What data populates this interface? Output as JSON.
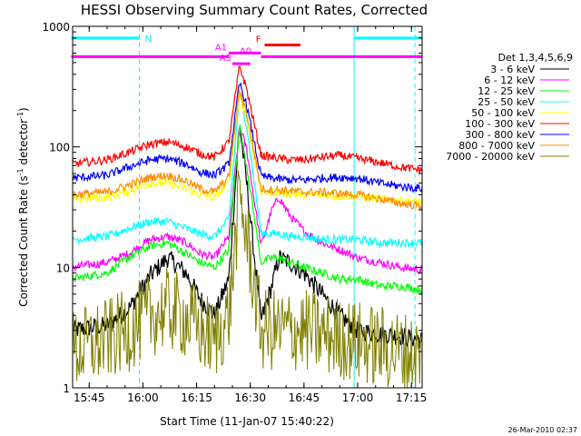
{
  "chart_data": {
    "type": "line",
    "title": "HESSI Observing Summary Count Rates, Corrected",
    "xlabel": "Start Time (11-Jan-07 15:40:22)",
    "ylabel": "Corrected Count Rate (s⁻¹ detector⁻¹)",
    "ylabel_parts": [
      "Corrected Count Rate (s",
      "-1",
      " detector",
      "-1",
      ")"
    ],
    "y_scale": "log",
    "ylim": [
      1,
      1000
    ],
    "xlim": [
      "15:40:22",
      "17:18:00"
    ],
    "x_ticks": [
      "15:45",
      "16:00",
      "16:15",
      "16:30",
      "16:45",
      "17:00",
      "17:15"
    ],
    "y_ticks": [
      "1",
      "10",
      "100",
      "1000"
    ],
    "legend_title": "Det 1,3,4,5,6,9",
    "legend_position": "right",
    "timestamp": "26-Mar-2010 02:37",
    "series": [
      {
        "name": "3 - 6 keV",
        "color": "#000000",
        "x": [
          "15:40",
          "15:50",
          "15:56",
          "16:02",
          "16:07",
          "16:12",
          "16:16",
          "16:20",
          "16:24",
          "16:27",
          "16:29",
          "16:33",
          "16:36",
          "16:38",
          "16:41",
          "16:45",
          "16:50",
          "16:55",
          "17:00",
          "17:06",
          "17:12",
          "17:18"
        ],
        "values": [
          3,
          3.3,
          4.5,
          8.5,
          12,
          9,
          5.5,
          4,
          8,
          150,
          50,
          3.6,
          7,
          12,
          11,
          9,
          6,
          4,
          3,
          2.8,
          2.7,
          2.5
        ]
      },
      {
        "name": "6 - 12 keV",
        "color": "#ff00ff",
        "x": [
          "15:40",
          "15:50",
          "15:56",
          "16:02",
          "16:07",
          "16:12",
          "16:16",
          "16:20",
          "16:24",
          "16:27",
          "16:29",
          "16:33",
          "16:36",
          "16:38",
          "16:41",
          "16:45",
          "16:50",
          "16:55",
          "17:00",
          "17:06",
          "17:12",
          "17:18"
        ],
        "values": [
          10,
          11,
          13,
          17,
          18,
          16,
          13,
          12,
          18,
          150,
          95,
          15,
          30,
          38,
          27,
          20,
          16,
          14,
          12,
          11,
          10,
          9.5
        ]
      },
      {
        "name": "12 - 25 keV",
        "color": "#00ff00",
        "x": [
          "15:40",
          "15:50",
          "15:56",
          "16:02",
          "16:07",
          "16:12",
          "16:16",
          "16:20",
          "16:24",
          "16:27",
          "16:29",
          "16:33",
          "16:36",
          "16:38",
          "16:41",
          "16:45",
          "16:50",
          "16:55",
          "17:00",
          "17:06",
          "17:12",
          "17:18"
        ],
        "values": [
          8,
          9,
          12,
          15,
          16,
          13,
          11,
          10,
          14,
          150,
          70,
          11,
          12,
          12,
          11,
          10,
          9,
          8,
          8,
          7,
          7,
          6.5
        ]
      },
      {
        "name": "25 - 50 keV",
        "color": "#00ffff",
        "x": [
          "15:40",
          "15:50",
          "15:56",
          "16:02",
          "16:07",
          "16:12",
          "16:16",
          "16:20",
          "16:24",
          "16:27",
          "16:29",
          "16:33",
          "16:36",
          "16:38",
          "16:41",
          "16:45",
          "16:50",
          "16:55",
          "17:00",
          "17:06",
          "17:12",
          "17:18"
        ],
        "values": [
          17,
          18,
          21,
          24,
          24,
          21,
          19,
          18,
          25,
          280,
          150,
          19,
          19,
          19,
          18,
          18,
          17,
          17,
          17,
          16,
          16,
          16
        ]
      },
      {
        "name": "50 - 100 keV",
        "color": "#ffff00",
        "x": [
          "15:40",
          "15:50",
          "15:56",
          "16:02",
          "16:07",
          "16:12",
          "16:16",
          "16:20",
          "16:24",
          "16:27",
          "16:29",
          "16:33",
          "16:36",
          "16:38",
          "16:41",
          "16:45",
          "16:50",
          "16:55",
          "17:00",
          "17:06",
          "17:12",
          "17:18"
        ],
        "values": [
          37,
          38,
          43,
          50,
          50,
          45,
          40,
          38,
          50,
          270,
          170,
          42,
          42,
          42,
          41,
          40,
          40,
          39,
          39,
          37,
          36,
          35
        ]
      },
      {
        "name": "100 - 300 keV",
        "color": "#ff0000",
        "x": [
          "15:40",
          "15:50",
          "15:56",
          "16:02",
          "16:07",
          "16:12",
          "16:16",
          "16:20",
          "16:24",
          "16:27",
          "16:29",
          "16:33",
          "16:36",
          "16:38",
          "16:41",
          "16:45",
          "16:50",
          "16:55",
          "17:00",
          "17:06",
          "17:12",
          "17:18"
        ],
        "values": [
          72,
          78,
          90,
          105,
          110,
          100,
          88,
          82,
          110,
          470,
          300,
          85,
          82,
          80,
          78,
          78,
          82,
          85,
          80,
          74,
          68,
          64
        ]
      },
      {
        "name": "300 - 800 keV",
        "color": "#0000ff",
        "x": [
          "15:40",
          "15:50",
          "15:56",
          "16:02",
          "16:07",
          "16:12",
          "16:16",
          "16:20",
          "16:24",
          "16:27",
          "16:29",
          "16:33",
          "16:36",
          "16:38",
          "16:41",
          "16:45",
          "16:50",
          "16:55",
          "17:00",
          "17:06",
          "17:12",
          "17:18"
        ],
        "values": [
          55,
          58,
          68,
          78,
          80,
          72,
          62,
          58,
          72,
          340,
          220,
          57,
          55,
          54,
          53,
          53,
          55,
          56,
          55,
          50,
          47,
          45
        ]
      },
      {
        "name": "800 - 7000 keV",
        "color": "#ff8c00",
        "x": [
          "15:40",
          "15:50",
          "15:56",
          "16:02",
          "16:07",
          "16:12",
          "16:16",
          "16:20",
          "16:24",
          "16:27",
          "16:29",
          "16:33",
          "16:36",
          "16:38",
          "16:41",
          "16:45",
          "16:50",
          "16:55",
          "17:00",
          "17:06",
          "17:12",
          "17:18"
        ],
        "values": [
          40,
          42,
          48,
          56,
          58,
          52,
          45,
          42,
          56,
          300,
          190,
          45,
          44,
          44,
          43,
          42,
          42,
          41,
          40,
          37,
          34,
          32
        ]
      },
      {
        "name": "7000 - 20000 keV",
        "color": "#808000",
        "x": [
          "15:40",
          "15:50",
          "15:56",
          "16:02",
          "16:07",
          "16:12",
          "16:16",
          "16:20",
          "16:24",
          "16:27",
          "16:29",
          "16:33",
          "16:36",
          "16:38",
          "16:41",
          "16:45",
          "16:50",
          "16:55",
          "17:00",
          "17:06",
          "17:12",
          "17:18"
        ],
        "values": [
          2,
          2.5,
          3,
          4,
          4.5,
          3.8,
          3,
          2.5,
          4,
          38,
          18,
          3,
          3,
          3,
          3,
          3,
          2.8,
          2.6,
          2.4,
          2.2,
          2,
          1.8
        ]
      }
    ],
    "annotations": [
      {
        "label": "N",
        "color": "#00ffff",
        "x_ranges": [
          [
            "15:40",
            "15:59"
          ],
          [
            "16:59",
            "17:18"
          ]
        ],
        "y": 800
      },
      {
        "label": "A0",
        "color": "#ff00ff",
        "x_ranges": [
          [
            "15:40",
            "16:24"
          ],
          [
            "16:33",
            "17:18"
          ]
        ],
        "y": 560
      },
      {
        "label": "A1",
        "color": "#ff00ff",
        "x_ranges": [
          [
            "16:24",
            "16:33"
          ]
        ],
        "y": 600
      },
      {
        "label": "A3",
        "color": "#ff00ff",
        "x_ranges": [
          [
            "16:25",
            "16:30"
          ]
        ],
        "y": 490
      },
      {
        "label": "F",
        "color": "#ff0000",
        "x_ranges": [
          [
            "16:34",
            "16:44"
          ]
        ],
        "y": 700
      }
    ],
    "vertical_lines": [
      {
        "x": "15:59",
        "color": "#00ffff",
        "style": "dashed"
      },
      {
        "x": "16:59",
        "color": "#00ffff",
        "style": "solid"
      },
      {
        "x": "17:16",
        "color": "#00ffff",
        "style": "dashed"
      }
    ]
  }
}
